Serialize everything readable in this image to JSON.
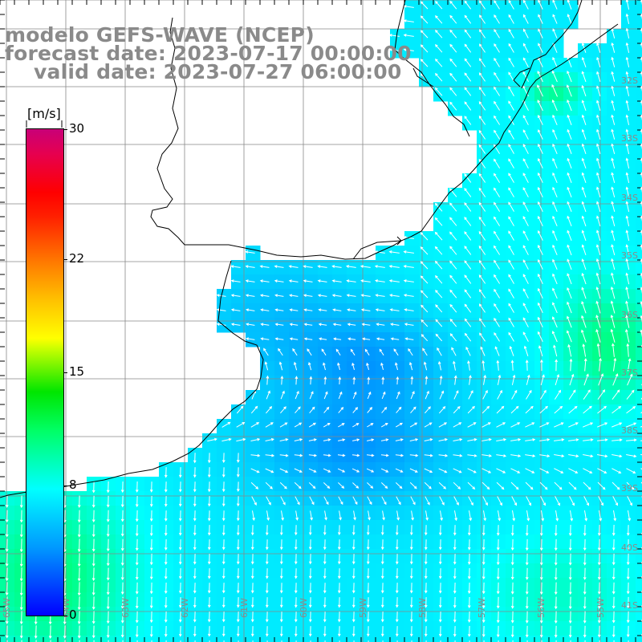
{
  "title": {
    "model": "modelo GEFS-WAVE (NCEP)",
    "forecast": "forecast date: 2023-07-17 00:00:00",
    "valid": "valid date: 2023-07-27 06:00:00"
  },
  "colorbar": {
    "unit": "[m/s]",
    "min": 0,
    "max": 30,
    "ticks": [
      {
        "value": 30,
        "label": "30"
      },
      {
        "value": 22,
        "label": "22"
      },
      {
        "value": 15,
        "label": "15"
      },
      {
        "value": 8,
        "label": "8"
      },
      {
        "value": 0,
        "label": "0"
      }
    ],
    "colors": [
      "#0000ff",
      "#0099ff",
      "#00ffff",
      "#00ff66",
      "#00e600",
      "#ffff00",
      "#ff8000",
      "#ff0000",
      "#c80078"
    ]
  },
  "map": {
    "variable": "wind speed and direction",
    "land_color": "#ffffff",
    "coast_color": "#000000",
    "grid_color": "#888888",
    "lat_labels": [
      "32S",
      "33S",
      "34S",
      "35S",
      "36S",
      "37S",
      "38S",
      "39S",
      "40S",
      "41S"
    ],
    "lon_labels": [
      "65W",
      "64W",
      "63W",
      "62W",
      "61W",
      "60W",
      "59W",
      "58W",
      "57W",
      "56W",
      "55W"
    ]
  }
}
